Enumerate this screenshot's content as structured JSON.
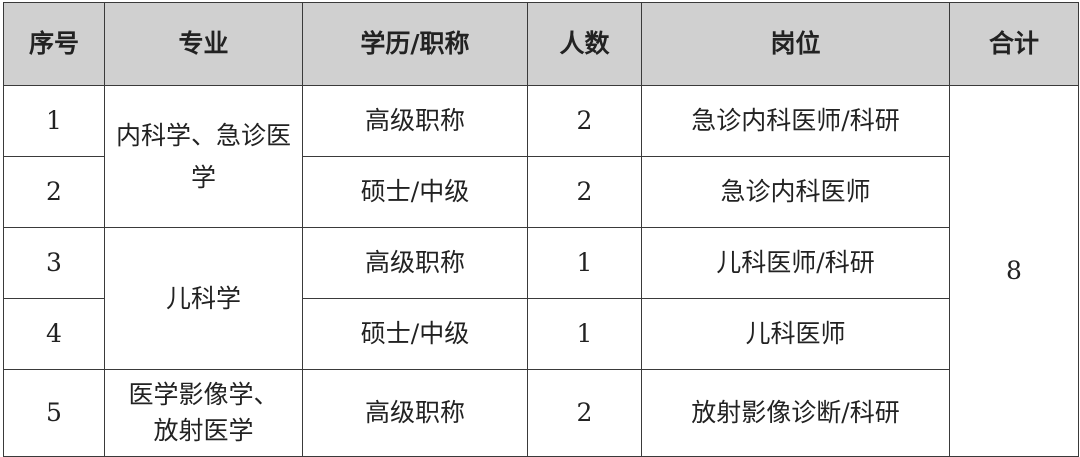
{
  "headers": [
    "序号",
    "专业",
    "学历/职称",
    "人数",
    "岗位",
    "合计"
  ],
  "rows": [
    {
      "no": "1",
      "major": "内科学、急诊医学",
      "edu": "高级职称",
      "count": "2",
      "post": "急诊内科医师/科研"
    },
    {
      "no": "2",
      "edu": "硕士/中级",
      "count": "2",
      "post": "急诊内科医师"
    },
    {
      "no": "3",
      "major": "儿科学",
      "edu": "高级职称",
      "count": "1",
      "post": "儿科医师/科研"
    },
    {
      "no": "4",
      "edu": "硕士/中级",
      "count": "1",
      "post": "儿科医师"
    },
    {
      "no": "5",
      "major": "医学影像学、放射医学",
      "edu": "高级职称",
      "count": "2",
      "post": "放射影像诊断/科研"
    }
  ],
  "total": "8",
  "colors": {
    "header_bg": "#d0d0d0",
    "border": "#3a3a3a"
  }
}
